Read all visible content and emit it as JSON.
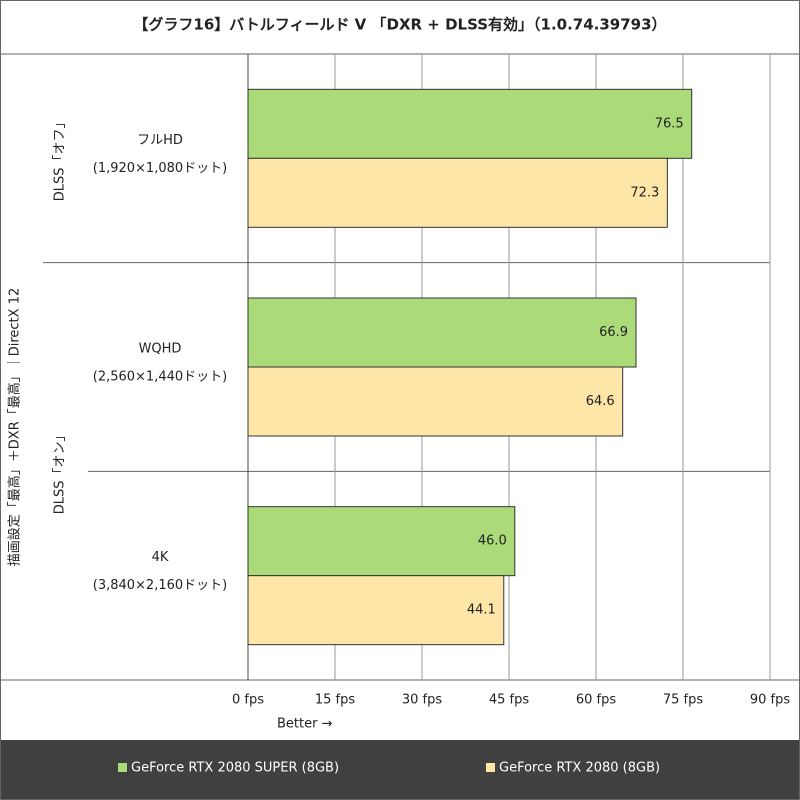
{
  "chart_data": {
    "type": "bar",
    "title": "【グラフ16】バトルフィールド V 「DXR + DLSS有効」（1.0.74.39793）",
    "categories": [
      "フルHD",
      "WQHD",
      "4K"
    ],
    "category_sublabels": [
      "(1,920×1,080ドット)",
      "(2,560×1,440ドット)",
      "(3,840×2,160ドット)"
    ],
    "group_labels": [
      "DLSS「オフ」",
      "DLSS「オン」"
    ],
    "outer_label": "描画設定「最高」＋DXR「最高」｜DirectX 12",
    "x_label": "Better →",
    "series": [
      {
        "name": "GeForce RTX 2080 SUPER (8GB)",
        "color": "#aadb78",
        "values": [
          76.5,
          66.9,
          46.0
        ],
        "value_labels": [
          "76.5",
          "66.9",
          "46.0"
        ]
      },
      {
        "name": "GeForce RTX 2080 (8GB)",
        "color": "#fde6a8",
        "values": [
          72.3,
          64.6,
          44.1
        ],
        "value_labels": [
          "72.3",
          "64.6",
          "44.1"
        ]
      }
    ],
    "xlim": [
      0,
      90
    ],
    "xticks": [
      {
        "value": 0,
        "label": "0 fps"
      },
      {
        "value": 15,
        "label": "15 fps"
      },
      {
        "value": 30,
        "label": "30 fps"
      },
      {
        "value": 45,
        "label": "45 fps"
      },
      {
        "value": 60,
        "label": "60 fps"
      },
      {
        "value": 75,
        "label": "75 fps"
      },
      {
        "value": 90,
        "label": "90 fps"
      }
    ],
    "grid": true
  }
}
